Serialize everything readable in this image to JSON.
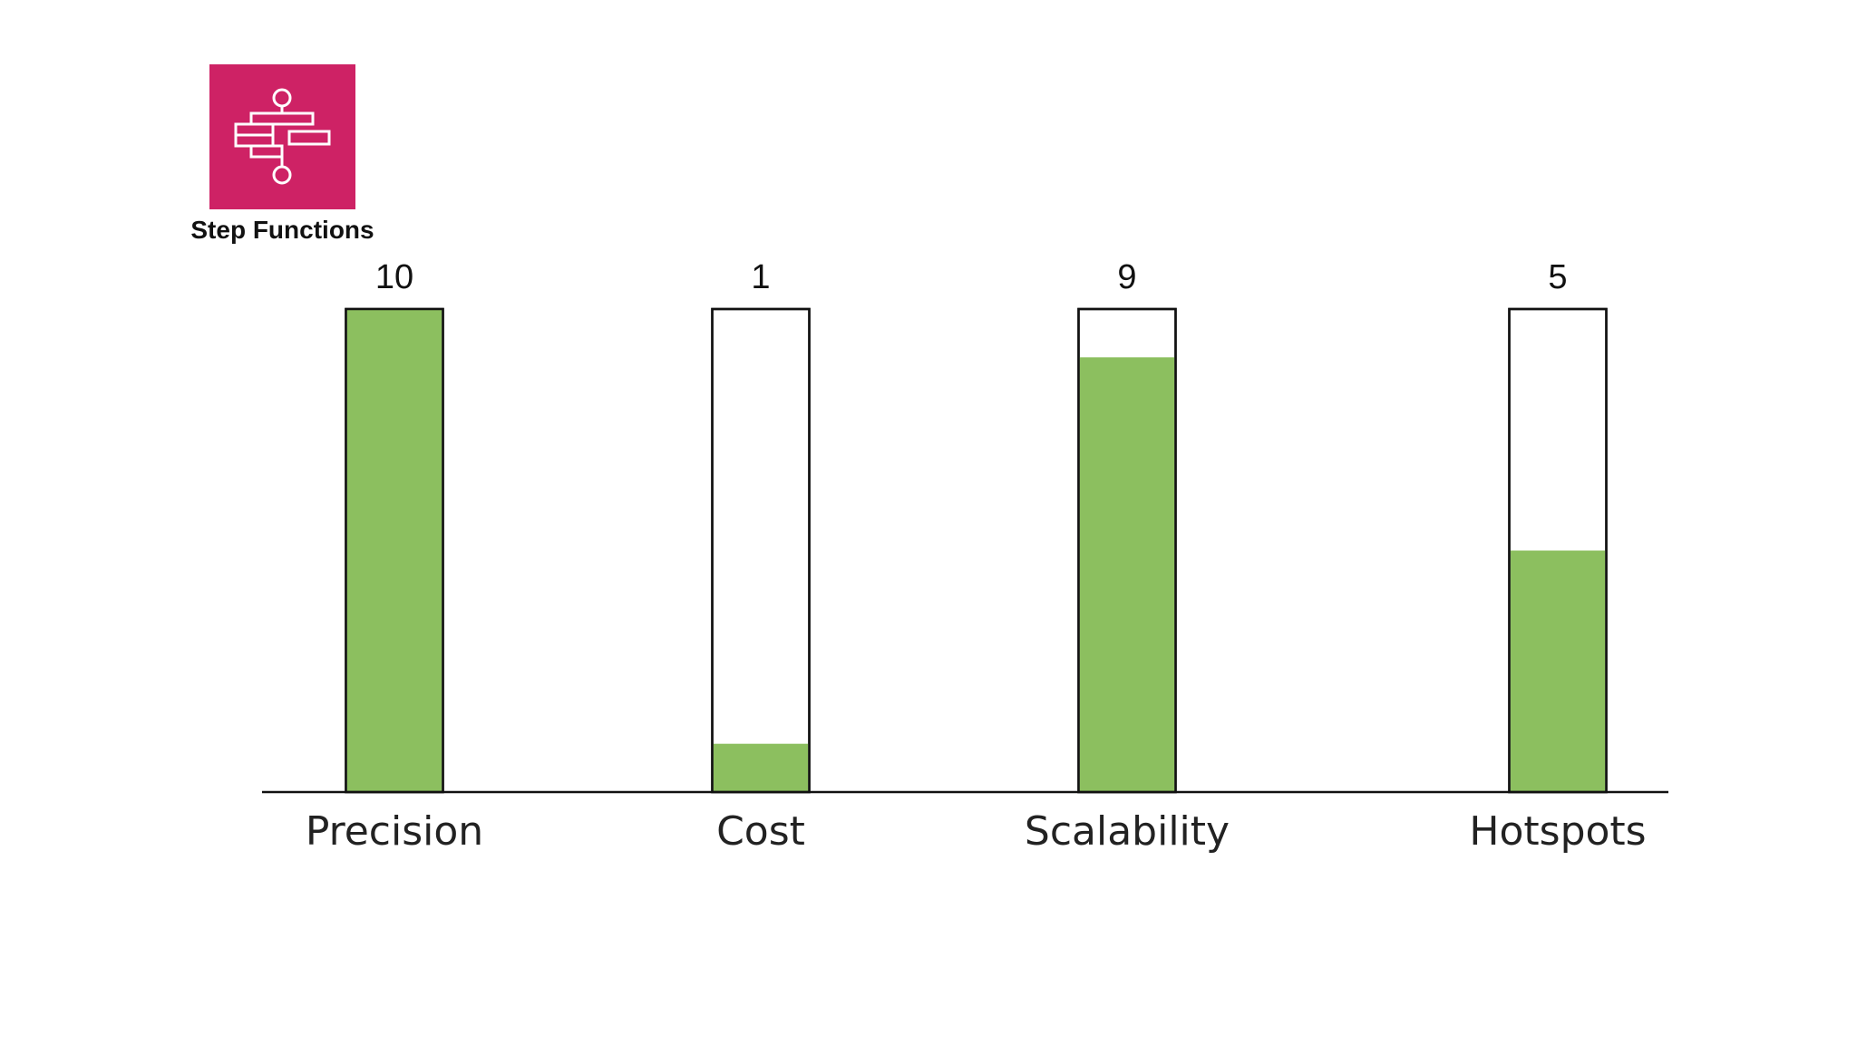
{
  "logo": {
    "icon": "step-functions-icon",
    "label": "Step Functions",
    "tile_color": "#CE2265",
    "glyph_color": "#ffffff"
  },
  "chart_data": {
    "type": "bar",
    "categories": [
      "Precision",
      "Cost",
      "Scalability",
      "Hotspots"
    ],
    "values": [
      10,
      1,
      9,
      5
    ],
    "ylim": [
      0,
      10
    ],
    "title": "",
    "xlabel": "",
    "ylabel": "",
    "grid": false,
    "bar_color": "#8CBF5F",
    "bar_outline_color": "#111111"
  }
}
